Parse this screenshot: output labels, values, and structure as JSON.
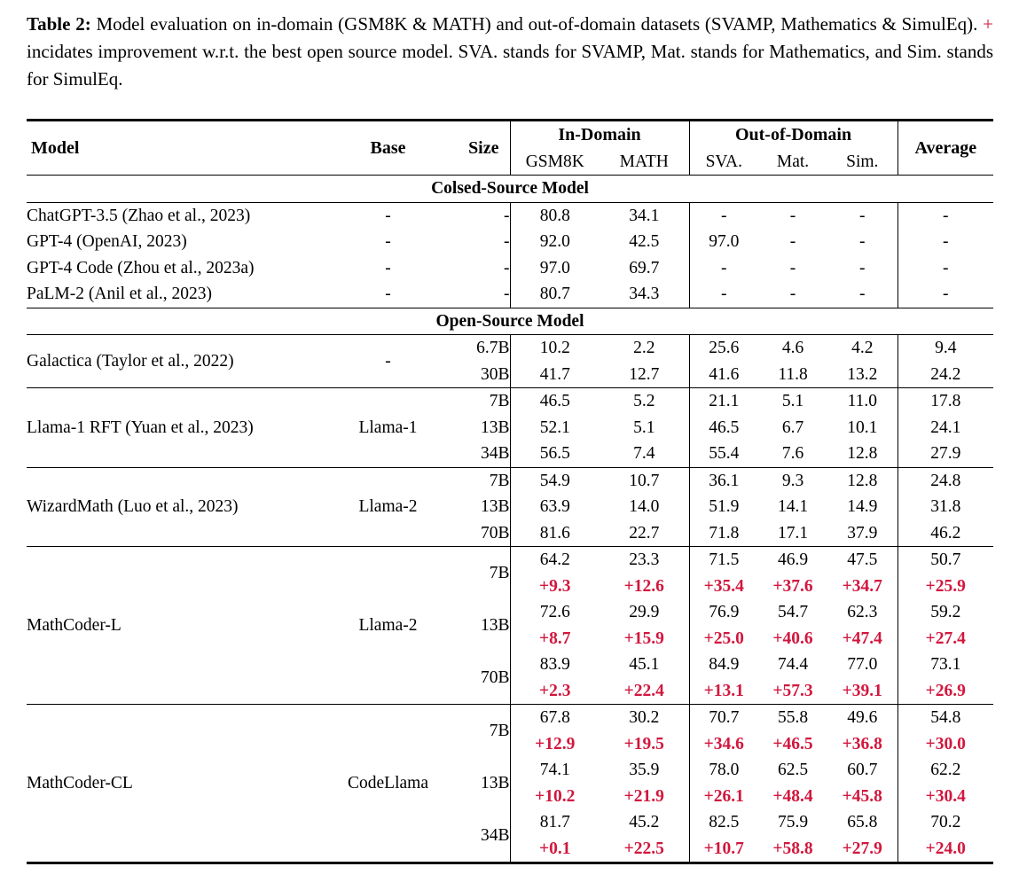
{
  "caption": {
    "label": "Table 2:",
    "text_1": "Model evaluation on in-domain (GSM8K & MATH) and out-of-domain datasets (SVAMP, Mathematics & SimulEq).",
    "plus": "+",
    "text_2": "incidates improvement w.r.t. the best open source model. SVA. stands for SVAMP, Mat. stands for Mathematics, and Sim. stands for SimulEq."
  },
  "colors": {
    "accent_red": "#d2173e",
    "text": "#000000",
    "background": "#ffffff"
  },
  "table": {
    "headers": {
      "model": "Model",
      "base": "Base",
      "size": "Size",
      "in_domain": "In-Domain",
      "out_of_domain": "Out-of-Domain",
      "average": "Average",
      "sub": [
        "GSM8K",
        "MATH",
        "SVA.",
        "Mat.",
        "Sim."
      ]
    },
    "sections": [
      {
        "title": "Colsed-Source Model",
        "groups": [
          {
            "model": "ChatGPT-3.5 (Zhao et al., 2023)",
            "base": "-",
            "rows": [
              {
                "size": "-",
                "values": [
                  "80.8",
                  "34.1",
                  "-",
                  "-",
                  "-",
                  "-"
                ]
              }
            ]
          },
          {
            "model": "GPT-4 (OpenAI, 2023)",
            "base": "-",
            "rows": [
              {
                "size": "-",
                "values": [
                  "92.0",
                  "42.5",
                  "97.0",
                  "-",
                  "-",
                  "-"
                ]
              }
            ]
          },
          {
            "model": "GPT-4 Code (Zhou et al., 2023a)",
            "base": "-",
            "rows": [
              {
                "size": "-",
                "values": [
                  "97.0",
                  "69.7",
                  "-",
                  "-",
                  "-",
                  "-"
                ]
              }
            ]
          },
          {
            "model": "PaLM-2 (Anil et al., 2023)",
            "base": "-",
            "rows": [
              {
                "size": "-",
                "values": [
                  "80.7",
                  "34.3",
                  "-",
                  "-",
                  "-",
                  "-"
                ]
              }
            ]
          }
        ]
      },
      {
        "title": "Open-Source Model",
        "groups": [
          {
            "model": "Galactica (Taylor et al., 2022)",
            "base": "-",
            "rows": [
              {
                "size": "6.7B",
                "values": [
                  "10.2",
                  "2.2",
                  "25.6",
                  "4.6",
                  "4.2",
                  "9.4"
                ]
              },
              {
                "size": "30B",
                "values": [
                  "41.7",
                  "12.7",
                  "41.6",
                  "11.8",
                  "13.2",
                  "24.2"
                ]
              }
            ]
          },
          {
            "model": "Llama-1 RFT (Yuan et al., 2023)",
            "base": "Llama-1",
            "rows": [
              {
                "size": "7B",
                "values": [
                  "46.5",
                  "5.2",
                  "21.1",
                  "5.1",
                  "11.0",
                  "17.8"
                ]
              },
              {
                "size": "13B",
                "values": [
                  "52.1",
                  "5.1",
                  "46.5",
                  "6.7",
                  "10.1",
                  "24.1"
                ]
              },
              {
                "size": "34B",
                "values": [
                  "56.5",
                  "7.4",
                  "55.4",
                  "7.6",
                  "12.8",
                  "27.9"
                ]
              }
            ]
          },
          {
            "model": "WizardMath (Luo et al., 2023)",
            "base": "Llama-2",
            "rows": [
              {
                "size": "7B",
                "values": [
                  "54.9",
                  "10.7",
                  "36.1",
                  "9.3",
                  "12.8",
                  "24.8"
                ]
              },
              {
                "size": "13B",
                "values": [
                  "63.9",
                  "14.0",
                  "51.9",
                  "14.1",
                  "14.9",
                  "31.8"
                ]
              },
              {
                "size": "70B",
                "values": [
                  "81.6",
                  "22.7",
                  "71.8",
                  "17.1",
                  "37.9",
                  "46.2"
                ]
              }
            ]
          },
          {
            "model": "MathCoder-L",
            "base": "Llama-2",
            "rows": [
              {
                "size": "7B",
                "values": [
                  "64.2",
                  "23.3",
                  "71.5",
                  "46.9",
                  "47.5",
                  "50.7"
                ],
                "deltas": [
                  "+9.3",
                  "+12.6",
                  "+35.4",
                  "+37.6",
                  "+34.7",
                  "+25.9"
                ]
              },
              {
                "size": "13B",
                "values": [
                  "72.6",
                  "29.9",
                  "76.9",
                  "54.7",
                  "62.3",
                  "59.2"
                ],
                "deltas": [
                  "+8.7",
                  "+15.9",
                  "+25.0",
                  "+40.6",
                  "+47.4",
                  "+27.4"
                ]
              },
              {
                "size": "70B",
                "values": [
                  "83.9",
                  "45.1",
                  "84.9",
                  "74.4",
                  "77.0",
                  "73.1"
                ],
                "deltas": [
                  "+2.3",
                  "+22.4",
                  "+13.1",
                  "+57.3",
                  "+39.1",
                  "+26.9"
                ]
              }
            ]
          },
          {
            "model": "MathCoder-CL",
            "base": "CodeLlama",
            "rows": [
              {
                "size": "7B",
                "values": [
                  "67.8",
                  "30.2",
                  "70.7",
                  "55.8",
                  "49.6",
                  "54.8"
                ],
                "deltas": [
                  "+12.9",
                  "+19.5",
                  "+34.6",
                  "+46.5",
                  "+36.8",
                  "+30.0"
                ]
              },
              {
                "size": "13B",
                "values": [
                  "74.1",
                  "35.9",
                  "78.0",
                  "62.5",
                  "60.7",
                  "62.2"
                ],
                "deltas": [
                  "+10.2",
                  "+21.9",
                  "+26.1",
                  "+48.4",
                  "+45.8",
                  "+30.4"
                ]
              },
              {
                "size": "34B",
                "values": [
                  "81.7",
                  "45.2",
                  "82.5",
                  "75.9",
                  "65.8",
                  "70.2"
                ],
                "deltas": [
                  "+0.1",
                  "+22.5",
                  "+10.7",
                  "+58.8",
                  "+27.9",
                  "+24.0"
                ]
              }
            ]
          }
        ]
      }
    ]
  }
}
